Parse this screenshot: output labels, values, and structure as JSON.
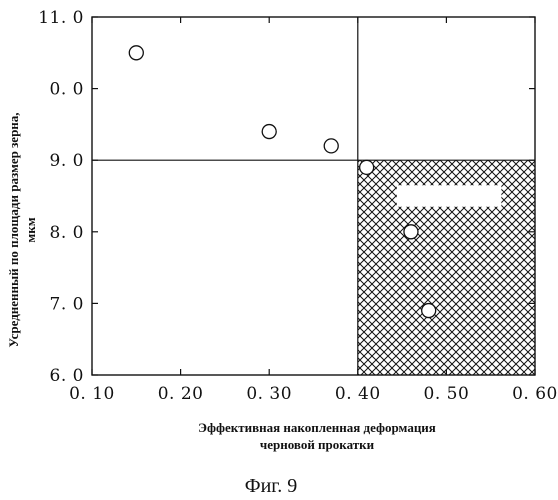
{
  "chart_data": {
    "type": "scatter",
    "title": "",
    "xlabel_line1": "Эффективная накопленная деформация",
    "xlabel_line2": "черновой прокатки",
    "ylabel_line1": "Усредненный по площади размер зерна,",
    "ylabel_line2": "мкм",
    "xlim": [
      0.1,
      0.6
    ],
    "ylim": [
      6.0,
      11.0
    ],
    "x_ticks": [
      0.1,
      0.2,
      0.3,
      0.4,
      0.5,
      0.6
    ],
    "x_tick_labels": [
      "0. 10",
      "0. 20",
      "0. 30",
      "0. 40",
      "0. 50",
      "0. 60"
    ],
    "y_ticks": [
      6.0,
      7.0,
      8.0,
      9.0,
      10.0,
      11.0
    ],
    "y_tick_labels": [
      "6. 0",
      "7. 0",
      "8. 0",
      "9. 0",
      "0. 0",
      "11. 0"
    ],
    "grid": false,
    "reference_lines": {
      "x": 0.4,
      "y": 9.0
    },
    "hatched_region": {
      "x": [
        0.4,
        0.6
      ],
      "y": [
        6.0,
        9.0
      ],
      "pattern": "crosshatch"
    },
    "points": [
      {
        "x": 0.15,
        "y": 10.5
      },
      {
        "x": 0.3,
        "y": 9.4
      },
      {
        "x": 0.37,
        "y": 9.2
      },
      {
        "x": 0.41,
        "y": 8.9
      },
      {
        "x": 0.46,
        "y": 8.0
      },
      {
        "x": 0.48,
        "y": 6.9
      }
    ],
    "colors": {
      "ink": "#111111",
      "background": "#ffffff"
    }
  },
  "caption": "Фиг. 9"
}
